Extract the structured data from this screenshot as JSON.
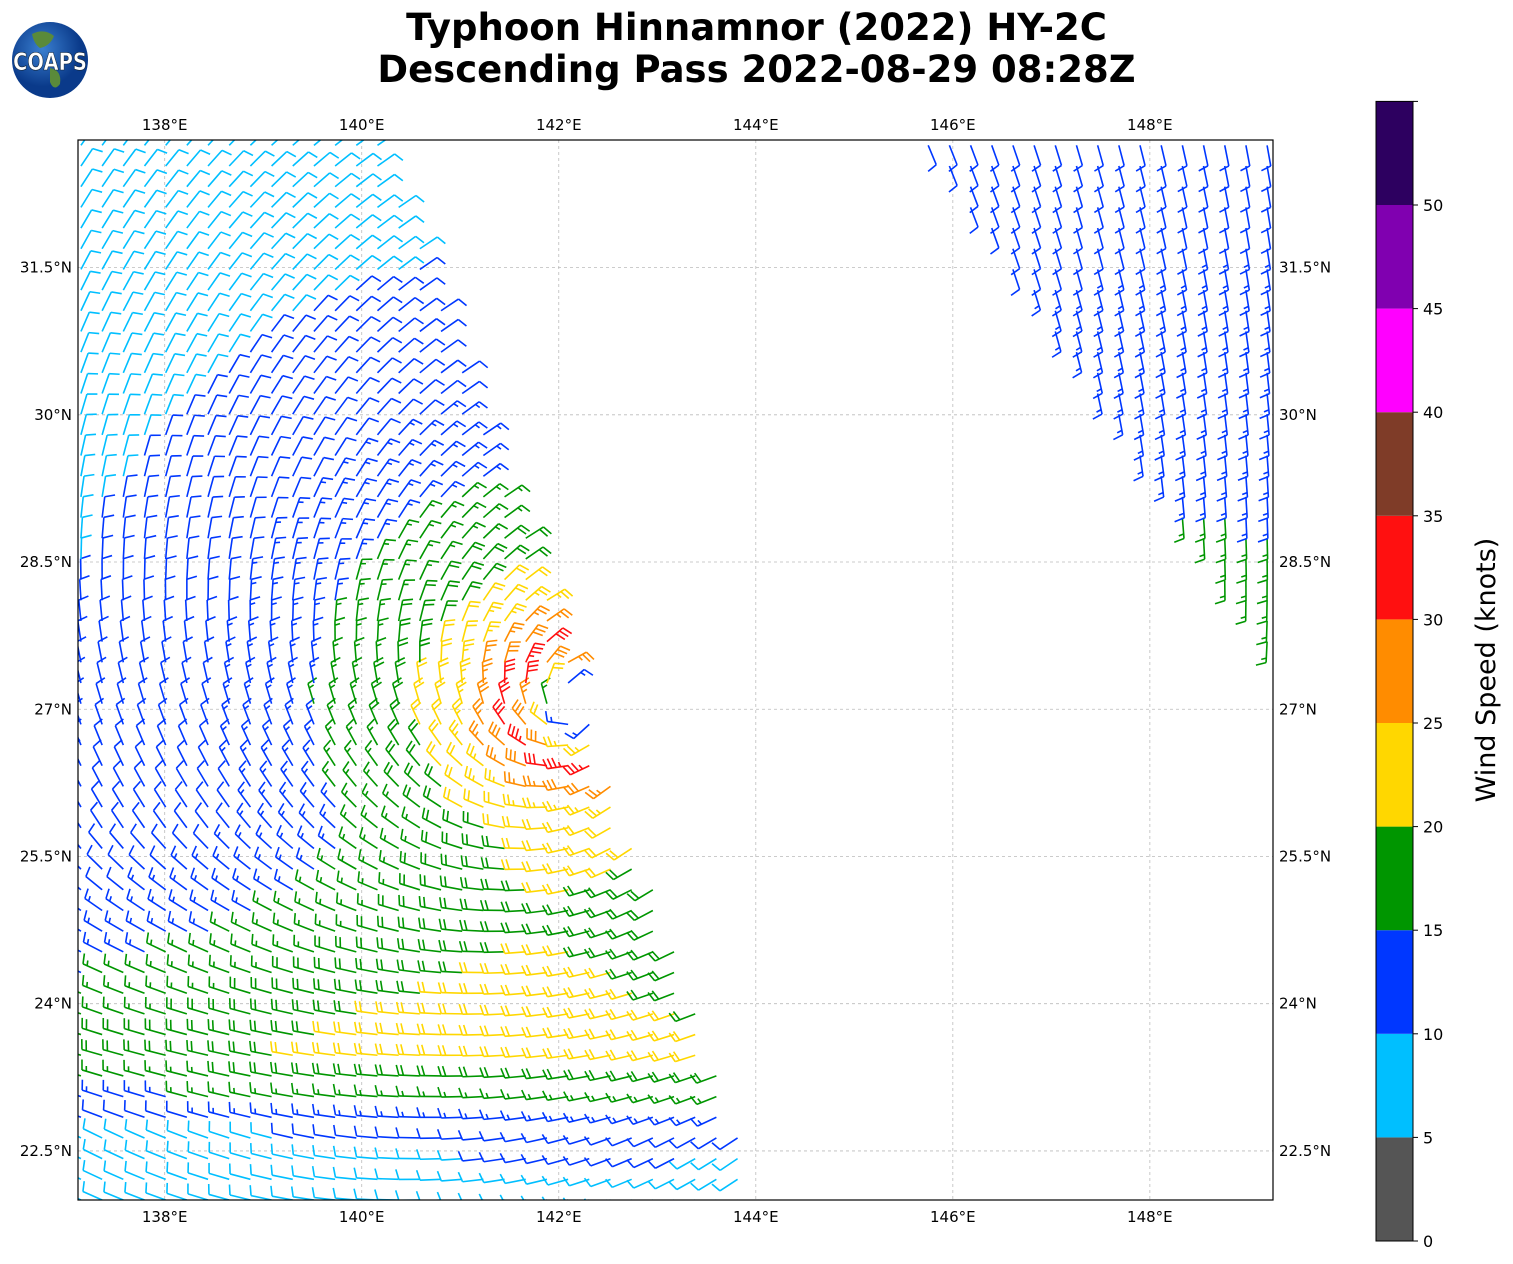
{
  "title": {
    "line1": "Typhoon Hinnamnor (2022) HY-2C",
    "line2": "Descending Pass 2022-08-29 08:28Z"
  },
  "logo": {
    "text": "COAPS"
  },
  "map": {
    "lon_range": [
      137.12,
      149.25
    ],
    "lat_range": [
      22.0,
      32.8
    ],
    "grid": true,
    "lon_ticks": [
      138,
      140,
      142,
      144,
      146,
      148
    ],
    "lon_labels": [
      "138°E",
      "140°E",
      "142°E",
      "144°E",
      "146°E",
      "148°E"
    ],
    "lat_ticks": [
      22.5,
      24,
      25.5,
      27,
      28.5,
      30,
      31.5
    ],
    "lat_labels": [
      "22.5°N",
      "24°N",
      "25.5°N",
      "27°N",
      "28.5°N",
      "30°N",
      "31.5°N"
    ],
    "storm_center": {
      "lon": 142.2,
      "lat": 27.05
    }
  },
  "colorbar": {
    "label": "Wind Speed (knots)",
    "ticks": [
      "0",
      "5",
      "10",
      "15",
      "20",
      "25",
      "30",
      "35",
      "40",
      "45",
      "50"
    ],
    "bins": [
      0,
      5,
      10,
      15,
      20,
      25,
      30,
      35,
      40,
      45,
      50,
      55
    ],
    "colors": [
      "#555555",
      "#00bfff",
      "#0037ff",
      "#009600",
      "#ffd700",
      "#ff8c00",
      "#ff1010",
      "#7f3c28",
      "#ff00ff",
      "#8000b0",
      "#2d0060"
    ]
  }
}
